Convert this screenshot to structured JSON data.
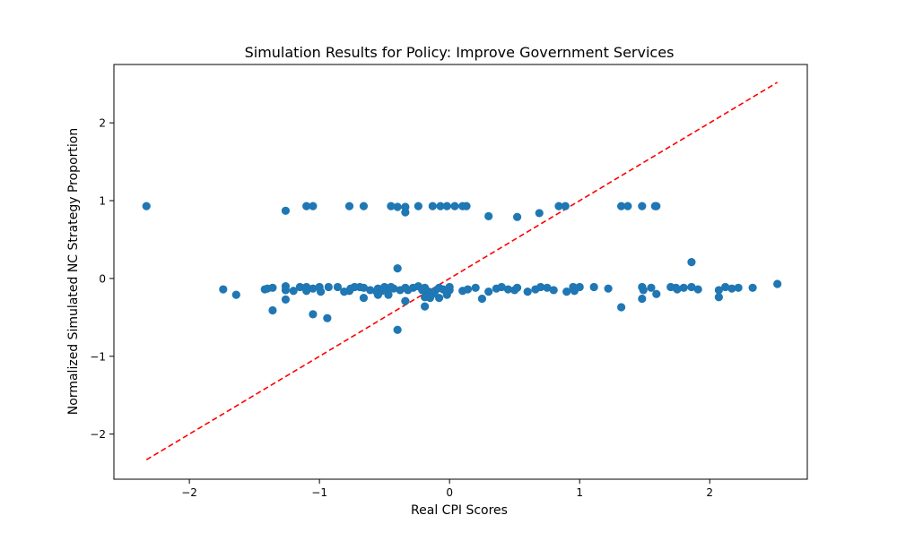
{
  "chart_data": {
    "type": "scatter",
    "title": "Simulation Results for Policy: Improve Government Services",
    "xlabel": "Real CPI Scores",
    "ylabel": "Normalized Simulated NC Strategy Proportion",
    "xlim": [
      -2.58,
      2.75
    ],
    "ylim": [
      -2.58,
      2.75
    ],
    "xticks": [
      {
        "value": -2,
        "label": "−2"
      },
      {
        "value": -1,
        "label": "−1"
      },
      {
        "value": 0,
        "label": "0"
      },
      {
        "value": 1,
        "label": "1"
      },
      {
        "value": 2,
        "label": "2"
      }
    ],
    "yticks": [
      {
        "value": -2,
        "label": "−2"
      },
      {
        "value": -1,
        "label": "−1"
      },
      {
        "value": 0,
        "label": "0"
      },
      {
        "value": 1,
        "label": "1"
      },
      {
        "value": 2,
        "label": "2"
      }
    ],
    "grid": false,
    "legend": null,
    "colors": {
      "points": "#1f77b4",
      "reference_line": "#ff0000"
    },
    "reference_line": {
      "style": "dashed",
      "x": [
        -2.33,
        2.52
      ],
      "y": [
        -2.33,
        2.52
      ]
    },
    "series": [
      {
        "points": [
          [
            -2.33,
            0.93
          ],
          [
            -1.26,
            0.87
          ],
          [
            -1.1,
            0.93
          ],
          [
            -1.05,
            0.93
          ],
          [
            -0.77,
            0.93
          ],
          [
            -0.66,
            0.93
          ],
          [
            -0.45,
            0.93
          ],
          [
            -0.4,
            0.92
          ],
          [
            -0.34,
            0.92
          ],
          [
            -0.34,
            0.85
          ],
          [
            -0.24,
            0.93
          ],
          [
            -0.13,
            0.93
          ],
          [
            -0.07,
            0.93
          ],
          [
            -0.02,
            0.93
          ],
          [
            0.04,
            0.93
          ],
          [
            0.1,
            0.93
          ],
          [
            0.13,
            0.93
          ],
          [
            0.3,
            0.8
          ],
          [
            0.52,
            0.79
          ],
          [
            0.69,
            0.84
          ],
          [
            0.84,
            0.93
          ],
          [
            0.89,
            0.93
          ],
          [
            1.32,
            0.93
          ],
          [
            1.37,
            0.93
          ],
          [
            1.48,
            0.93
          ],
          [
            1.58,
            0.93
          ],
          [
            1.59,
            0.93
          ],
          [
            -0.4,
            0.13
          ],
          [
            1.86,
            0.21
          ],
          [
            -1.74,
            -0.14
          ],
          [
            -1.42,
            -0.14
          ],
          [
            -1.4,
            -0.13
          ],
          [
            -1.36,
            -0.12
          ],
          [
            -1.26,
            -0.1
          ],
          [
            -1.26,
            -0.15
          ],
          [
            -1.2,
            -0.16
          ],
          [
            -1.15,
            -0.11
          ],
          [
            -1.1,
            -0.16
          ],
          [
            -1.1,
            -0.11
          ],
          [
            -1.05,
            -0.13
          ],
          [
            -1.0,
            -0.11
          ],
          [
            -0.99,
            -0.17
          ],
          [
            -0.93,
            -0.11
          ],
          [
            -0.86,
            -0.11
          ],
          [
            -0.81,
            -0.17
          ],
          [
            -0.77,
            -0.16
          ],
          [
            -0.76,
            -0.13
          ],
          [
            -0.73,
            -0.11
          ],
          [
            -0.69,
            -0.11
          ],
          [
            -0.66,
            -0.12
          ],
          [
            -0.61,
            -0.15
          ],
          [
            -0.56,
            -0.17
          ],
          [
            -0.55,
            -0.13
          ],
          [
            -0.52,
            -0.16
          ],
          [
            -0.5,
            -0.11
          ],
          [
            -0.47,
            -0.15
          ],
          [
            -0.45,
            -0.11
          ],
          [
            -0.43,
            -0.13
          ],
          [
            -0.38,
            -0.15
          ],
          [
            -0.34,
            -0.12
          ],
          [
            -0.32,
            -0.15
          ],
          [
            -0.28,
            -0.12
          ],
          [
            -0.24,
            -0.1
          ],
          [
            -0.21,
            -0.15
          ],
          [
            -0.19,
            -0.12
          ],
          [
            -0.16,
            -0.17
          ],
          [
            -0.13,
            -0.2
          ],
          [
            -0.11,
            -0.16
          ],
          [
            -0.08,
            -0.12
          ],
          [
            -0.05,
            -0.14
          ],
          [
            -0.02,
            -0.18
          ],
          [
            0.0,
            -0.11
          ],
          [
            0.0,
            -0.15
          ],
          [
            0.1,
            -0.16
          ],
          [
            0.14,
            -0.14
          ],
          [
            0.2,
            -0.12
          ],
          [
            0.3,
            -0.17
          ],
          [
            0.36,
            -0.13
          ],
          [
            0.4,
            -0.11
          ],
          [
            0.45,
            -0.14
          ],
          [
            0.5,
            -0.15
          ],
          [
            0.52,
            -0.12
          ],
          [
            0.6,
            -0.17
          ],
          [
            0.66,
            -0.14
          ],
          [
            0.7,
            -0.11
          ],
          [
            0.75,
            -0.12
          ],
          [
            0.8,
            -0.15
          ],
          [
            0.9,
            -0.17
          ],
          [
            0.95,
            -0.11
          ],
          [
            0.96,
            -0.16
          ],
          [
            1.0,
            -0.11
          ],
          [
            1.11,
            -0.11
          ],
          [
            1.22,
            -0.13
          ],
          [
            1.48,
            -0.11
          ],
          [
            1.49,
            -0.15
          ],
          [
            1.55,
            -0.12
          ],
          [
            1.59,
            -0.2
          ],
          [
            1.7,
            -0.11
          ],
          [
            1.74,
            -0.12
          ],
          [
            1.75,
            -0.14
          ],
          [
            1.8,
            -0.12
          ],
          [
            1.86,
            -0.11
          ],
          [
            1.91,
            -0.14
          ],
          [
            2.07,
            -0.15
          ],
          [
            2.12,
            -0.11
          ],
          [
            2.17,
            -0.13
          ],
          [
            2.22,
            -0.12
          ],
          [
            2.33,
            -0.12
          ],
          [
            2.52,
            -0.07
          ],
          [
            -1.64,
            -0.21
          ],
          [
            -1.26,
            -0.27
          ],
          [
            -0.66,
            -0.25
          ],
          [
            -0.55,
            -0.21
          ],
          [
            -0.47,
            -0.21
          ],
          [
            -0.34,
            -0.29
          ],
          [
            -0.19,
            -0.24
          ],
          [
            -0.15,
            -0.25
          ],
          [
            -0.08,
            -0.25
          ],
          [
            -0.02,
            -0.21
          ],
          [
            0.25,
            -0.26
          ],
          [
            1.48,
            -0.26
          ],
          [
            2.07,
            -0.24
          ],
          [
            -1.36,
            -0.41
          ],
          [
            -1.05,
            -0.46
          ],
          [
            -0.94,
            -0.51
          ],
          [
            -0.19,
            -0.36
          ],
          [
            1.32,
            -0.37
          ],
          [
            -0.4,
            -0.66
          ]
        ]
      }
    ]
  }
}
